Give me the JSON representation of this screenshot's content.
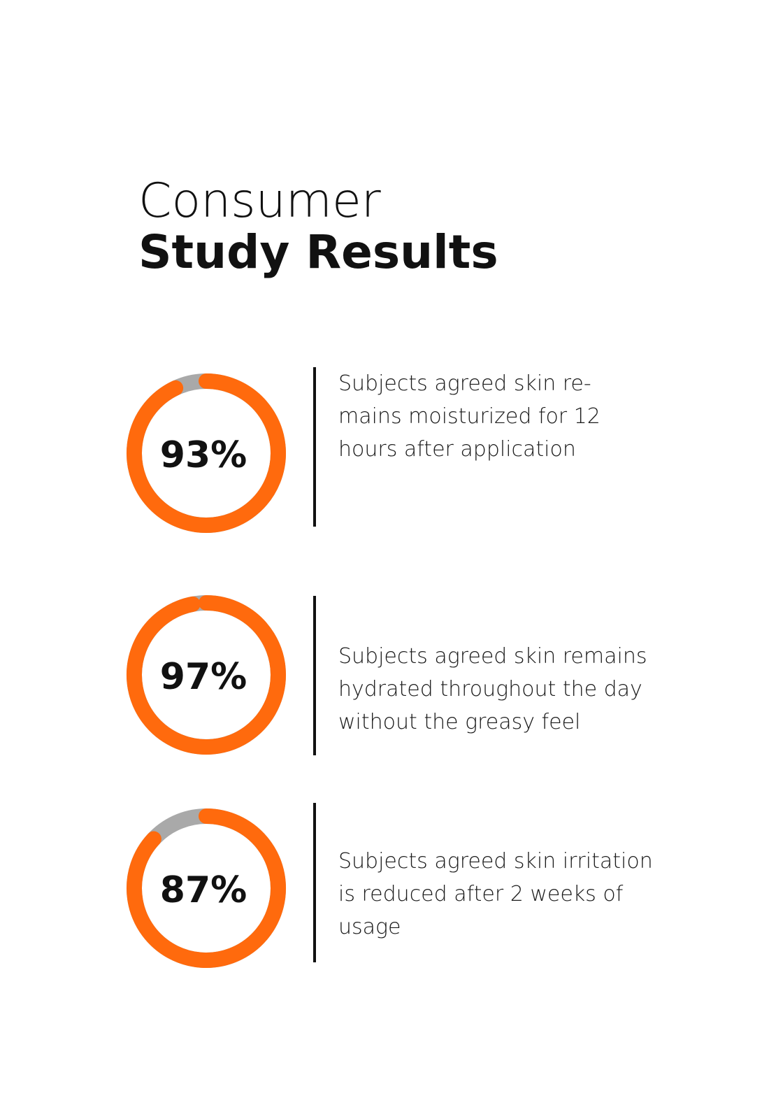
{
  "header": {
    "line1": "Consumer",
    "line2": "Study Results"
  },
  "chart_data": [
    {
      "type": "donut",
      "values": [
        93
      ],
      "value_labels": [
        "93%"
      ],
      "ylim": [
        0,
        100
      ],
      "color": "#ff6a0d",
      "track_color": "#a9a9a9",
      "caption": [
        "Subjects agreed skin re-",
        "mains moisturized for 12",
        "hours after application"
      ]
    },
    {
      "type": "donut",
      "values": [
        97
      ],
      "value_labels": [
        "97%"
      ],
      "ylim": [
        0,
        100
      ],
      "color": "#ff6a0d",
      "track_color": "#a9a9a9",
      "caption": [
        "Subjects agreed skin remains",
        "hydrated throughout the day",
        "without the greasy feel"
      ]
    },
    {
      "type": "donut",
      "values": [
        87
      ],
      "value_labels": [
        "87%"
      ],
      "ylim": [
        0,
        100
      ],
      "color": "#ff6a0d",
      "track_color": "#a9a9a9",
      "caption": [
        "Subjects agreed skin irritation",
        "is reduced after 2 weeks of",
        "usage"
      ]
    }
  ]
}
